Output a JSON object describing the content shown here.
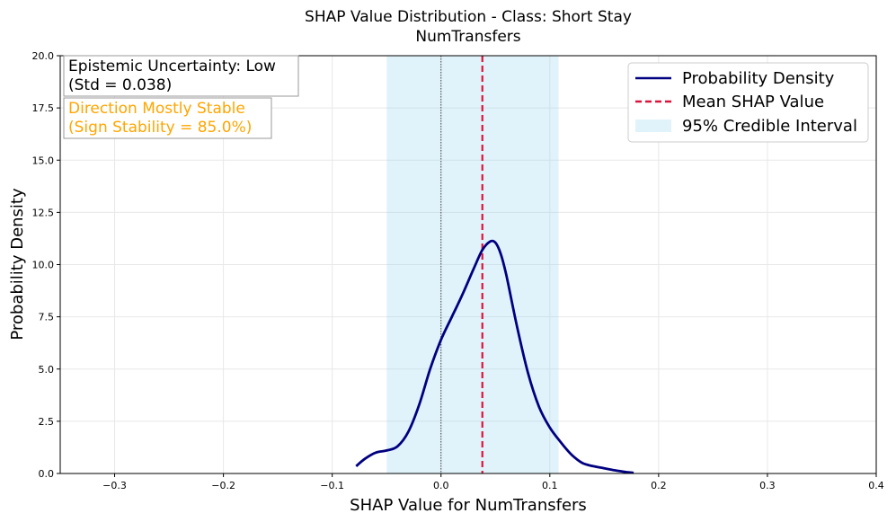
{
  "chart_data": {
    "type": "area",
    "title": "SHAP Value Distribution - Class: Short Stay",
    "subtitle": "NumTransfers",
    "xlabel": "SHAP Value for NumTransfers",
    "ylabel": "Probability Density",
    "xlim": [
      -0.35,
      0.4
    ],
    "ylim": [
      0,
      20
    ],
    "x_ticks": [
      -0.3,
      -0.2,
      -0.1,
      0.0,
      0.1,
      0.2,
      0.3,
      0.4
    ],
    "x_tick_labels": [
      "−0.3",
      "−0.2",
      "−0.1",
      "0.0",
      "0.1",
      "0.2",
      "0.3",
      "0.4"
    ],
    "y_ticks": [
      0.0,
      2.5,
      5.0,
      7.5,
      10.0,
      12.5,
      15.0,
      17.5,
      20.0
    ],
    "y_tick_labels": [
      "0.0",
      "2.5",
      "5.0",
      "7.5",
      "10.0",
      "12.5",
      "15.0",
      "17.5",
      "20.0"
    ],
    "grid": true,
    "legend_position": "top-right",
    "legend": [
      "Probability Density",
      "Mean SHAP Value",
      "95% Credible Interval"
    ],
    "density": {
      "name": "Probability Density",
      "color": "#000080",
      "x": [
        -0.078,
        -0.07,
        -0.06,
        -0.05,
        -0.04,
        -0.03,
        -0.02,
        -0.01,
        0.0,
        0.01,
        0.02,
        0.03,
        0.038,
        0.045,
        0.05,
        0.055,
        0.06,
        0.07,
        0.08,
        0.09,
        0.1,
        0.11,
        0.12,
        0.13,
        0.14,
        0.15,
        0.16,
        0.17,
        0.177
      ],
      "y": [
        0.35,
        0.7,
        1.0,
        1.1,
        1.3,
        2.0,
        3.3,
        5.0,
        6.4,
        7.5,
        8.6,
        9.8,
        10.7,
        11.1,
        11.05,
        10.5,
        9.5,
        7.0,
        4.8,
        3.2,
        2.2,
        1.5,
        0.9,
        0.5,
        0.35,
        0.25,
        0.15,
        0.07,
        0.03
      ]
    },
    "mean": {
      "name": "Mean SHAP Value",
      "value": 0.038,
      "color": "#dc143c"
    },
    "zero_line": 0.0,
    "credible_interval": {
      "name": "95% Credible Interval",
      "low": -0.05,
      "high": 0.108,
      "color": "#87ceeb"
    },
    "annotations": {
      "uncertainty_line1": "Epistemic Uncertainty: Low",
      "uncertainty_line2": "(Std = 0.038)",
      "direction_line1": "Direction Mostly Stable",
      "direction_line2": "(Sign Stability = 85.0%)",
      "direction_color": "#ffa500"
    }
  }
}
